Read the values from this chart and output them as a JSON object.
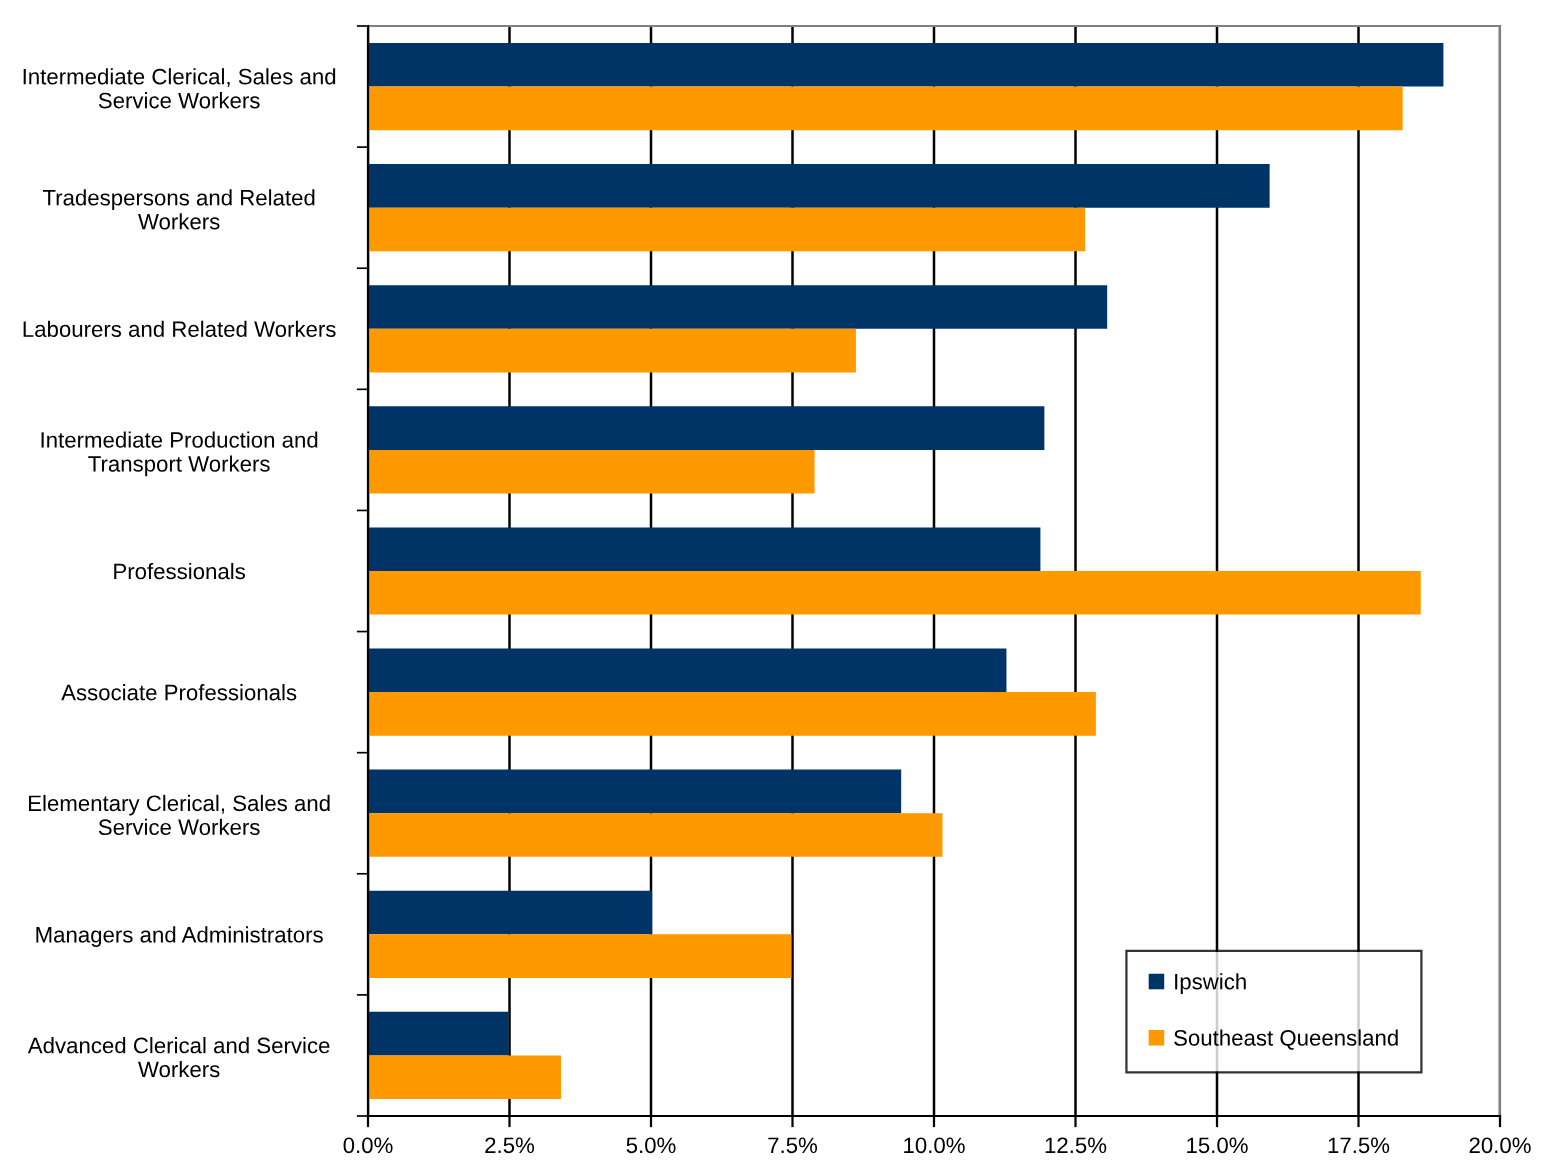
{
  "chart_data": {
    "type": "bar",
    "orientation": "horizontal",
    "categories": [
      "Intermediate Clerical, Sales and\nService Workers",
      "Tradespersons and Related\nWorkers",
      "Labourers and Related Workers",
      "Intermediate Production and\nTransport Workers",
      "Professionals",
      "Associate Professionals",
      "Elementary Clerical, Sales and\nService Workers",
      "Managers and Administrators",
      "Advanced Clerical and Service\nWorkers"
    ],
    "series": [
      {
        "name": "Ipswich",
        "color": "#003366",
        "values": [
          19.0,
          15.93,
          13.06,
          11.95,
          11.88,
          11.28,
          9.42,
          5.02,
          2.48
        ]
      },
      {
        "name": "Southeast Queensland",
        "color": "#ff9900",
        "values": [
          18.28,
          12.67,
          8.62,
          7.89,
          18.6,
          12.86,
          10.15,
          7.48,
          3.41
        ]
      }
    ],
    "xlim": [
      0,
      20
    ],
    "xticks": [
      {
        "value": 0,
        "label": "0.0%"
      },
      {
        "value": 2.5,
        "label": "2.5%"
      },
      {
        "value": 5,
        "label": "5.0%"
      },
      {
        "value": 7.5,
        "label": "7.5%"
      },
      {
        "value": 10,
        "label": "10.0%"
      },
      {
        "value": 12.5,
        "label": "12.5%"
      },
      {
        "value": 15,
        "label": "15.0%"
      },
      {
        "value": 17.5,
        "label": "17.5%"
      },
      {
        "value": 20,
        "label": "20.0%"
      }
    ],
    "grid": "x",
    "legend": "bottom right"
  }
}
